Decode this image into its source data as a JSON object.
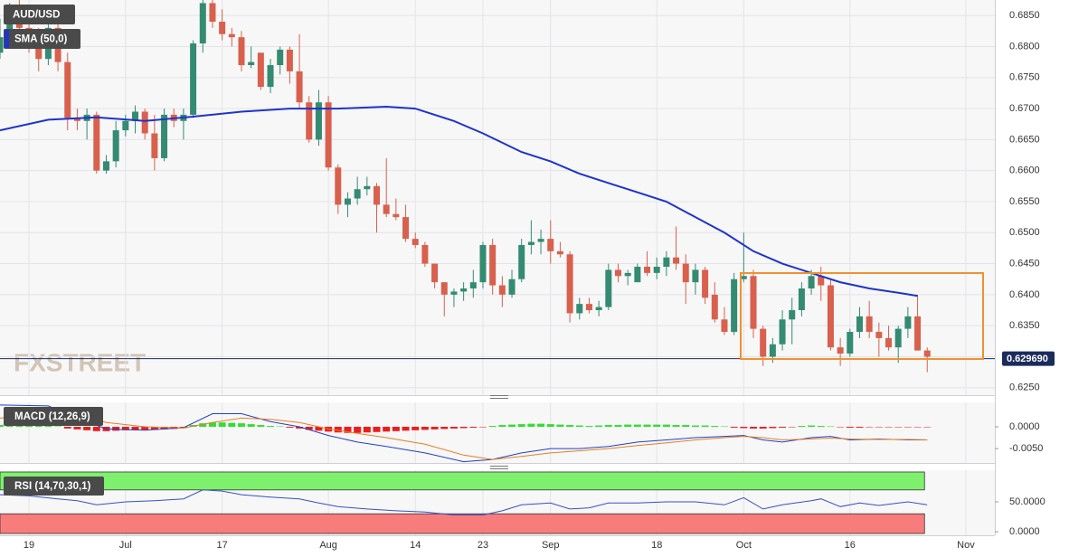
{
  "chart_data": [
    {
      "type": "candlestick",
      "title": "AUD/USD",
      "watermark": "FXSTREET",
      "up_color": "#348b72",
      "down_color": "#d8604d",
      "open": [
        0.679,
        0.6815,
        0.685,
        0.683,
        0.68,
        0.678,
        0.683,
        0.6775,
        0.6685,
        0.668,
        0.669,
        0.66,
        0.6615,
        0.6665,
        0.668,
        0.6695,
        0.666,
        0.662,
        0.669,
        0.668,
        0.669,
        0.6805,
        0.687,
        0.684,
        0.682,
        0.6815,
        0.677,
        0.679,
        0.6735,
        0.677,
        0.6795,
        0.676,
        0.671,
        0.665,
        0.671,
        0.6605,
        0.6545,
        0.6555,
        0.657,
        0.6575,
        0.6545,
        0.653,
        0.6525,
        0.649,
        0.648,
        0.645,
        0.642,
        0.64,
        0.6405,
        0.641,
        0.642,
        0.648,
        0.6415,
        0.64,
        0.6425,
        0.648,
        0.6485,
        0.649,
        0.647,
        0.6465,
        0.637,
        0.6385,
        0.6375,
        0.638,
        0.644,
        0.643,
        0.642,
        0.6445,
        0.6435,
        0.6445,
        0.646,
        0.645,
        0.642,
        0.644,
        0.64,
        0.636,
        0.634,
        0.6425,
        0.643,
        0.6345,
        0.63,
        0.632,
        0.636,
        0.6375,
        0.641,
        0.643,
        0.6415,
        0.6315,
        0.6305,
        0.634,
        0.6365,
        0.634,
        0.633,
        0.6315,
        0.6345,
        0.6365,
        0.631
      ],
      "high": [
        0.6845,
        0.687,
        0.6875,
        0.685,
        0.683,
        0.6845,
        0.684,
        0.679,
        0.67,
        0.67,
        0.6695,
        0.6625,
        0.668,
        0.669,
        0.6705,
        0.67,
        0.669,
        0.67,
        0.67,
        0.67,
        0.681,
        0.688,
        0.688,
        0.686,
        0.683,
        0.6825,
        0.68,
        0.679,
        0.678,
        0.68,
        0.68,
        0.682,
        0.672,
        0.673,
        0.672,
        0.661,
        0.6565,
        0.659,
        0.659,
        0.658,
        0.662,
        0.6555,
        0.6545,
        0.65,
        0.6485,
        0.645,
        0.642,
        0.641,
        0.642,
        0.644,
        0.6485,
        0.649,
        0.643,
        0.644,
        0.649,
        0.652,
        0.6505,
        0.652,
        0.6485,
        0.647,
        0.6395,
        0.6395,
        0.639,
        0.645,
        0.645,
        0.644,
        0.645,
        0.647,
        0.646,
        0.647,
        0.651,
        0.6465,
        0.645,
        0.6445,
        0.642,
        0.638,
        0.6435,
        0.65,
        0.644,
        0.635,
        0.633,
        0.6375,
        0.6395,
        0.642,
        0.644,
        0.6445,
        0.6425,
        0.633,
        0.6345,
        0.638,
        0.639,
        0.6355,
        0.635,
        0.635,
        0.638,
        0.64,
        0.6315
      ],
      "low": [
        0.678,
        0.68,
        0.682,
        0.679,
        0.676,
        0.677,
        0.676,
        0.6665,
        0.6665,
        0.665,
        0.6595,
        0.6595,
        0.6605,
        0.6655,
        0.666,
        0.665,
        0.66,
        0.6615,
        0.667,
        0.665,
        0.6685,
        0.679,
        0.683,
        0.681,
        0.68,
        0.676,
        0.6765,
        0.673,
        0.6725,
        0.6755,
        0.674,
        0.67,
        0.6645,
        0.664,
        0.66,
        0.653,
        0.6525,
        0.6545,
        0.656,
        0.65,
        0.6525,
        0.652,
        0.6485,
        0.6475,
        0.6445,
        0.641,
        0.6365,
        0.638,
        0.639,
        0.6395,
        0.641,
        0.64,
        0.638,
        0.6395,
        0.642,
        0.6465,
        0.6465,
        0.645,
        0.646,
        0.6355,
        0.636,
        0.637,
        0.6365,
        0.6375,
        0.642,
        0.6415,
        0.642,
        0.643,
        0.6425,
        0.643,
        0.644,
        0.6385,
        0.64,
        0.6385,
        0.6355,
        0.6335,
        0.6335,
        0.642,
        0.633,
        0.6285,
        0.629,
        0.631,
        0.632,
        0.6365,
        0.64,
        0.639,
        0.631,
        0.6285,
        0.63,
        0.633,
        0.633,
        0.63,
        0.631,
        0.629,
        0.633,
        0.631,
        0.6275
      ],
      "close": [
        0.6815,
        0.685,
        0.683,
        0.68,
        0.678,
        0.683,
        0.6775,
        0.6685,
        0.668,
        0.669,
        0.66,
        0.6615,
        0.6665,
        0.668,
        0.6695,
        0.666,
        0.662,
        0.669,
        0.668,
        0.669,
        0.6805,
        0.687,
        0.684,
        0.682,
        0.6815,
        0.677,
        0.6775,
        0.6735,
        0.677,
        0.6795,
        0.676,
        0.671,
        0.665,
        0.671,
        0.6605,
        0.6545,
        0.6555,
        0.657,
        0.6575,
        0.6545,
        0.653,
        0.6525,
        0.649,
        0.648,
        0.645,
        0.642,
        0.64,
        0.6405,
        0.641,
        0.642,
        0.648,
        0.6415,
        0.64,
        0.6425,
        0.648,
        0.6485,
        0.649,
        0.647,
        0.6465,
        0.637,
        0.6385,
        0.6375,
        0.638,
        0.644,
        0.643,
        0.6435,
        0.6445,
        0.6435,
        0.6445,
        0.646,
        0.645,
        0.642,
        0.644,
        0.6395,
        0.636,
        0.634,
        0.6425,
        0.643,
        0.6345,
        0.63,
        0.632,
        0.636,
        0.6375,
        0.641,
        0.643,
        0.6415,
        0.6315,
        0.6305,
        0.634,
        0.6365,
        0.634,
        0.633,
        0.6315,
        0.6345,
        0.6365,
        0.631,
        0.63
      ],
      "xlim": [
        0,
        103
      ],
      "xticks": [
        {
          "value": 3,
          "label": "19"
        },
        {
          "value": 13,
          "label": "Jul"
        },
        {
          "value": 23,
          "label": "17"
        },
        {
          "value": 34,
          "label": "Aug"
        },
        {
          "value": 43,
          "label": "14"
        },
        {
          "value": 50,
          "label": "23"
        },
        {
          "value": 57,
          "label": "Sep"
        },
        {
          "value": 68,
          "label": "18"
        },
        {
          "value": 77,
          "label": "Oct"
        },
        {
          "value": 88,
          "label": "16"
        },
        {
          "value": 100,
          "label": "Nov"
        }
      ],
      "ylim": [
        0.6238,
        0.6875
      ],
      "yticks": [
        {
          "value": 0.625,
          "label": "0.6250"
        },
        {
          "value": 0.63,
          "label": "0.6300"
        },
        {
          "value": 0.635,
          "label": "0.6350"
        },
        {
          "value": 0.64,
          "label": "0.6400"
        },
        {
          "value": 0.645,
          "label": "0.6450"
        },
        {
          "value": 0.65,
          "label": "0.6500"
        },
        {
          "value": 0.655,
          "label": "0.6550"
        },
        {
          "value": 0.66,
          "label": "0.6600"
        },
        {
          "value": 0.665,
          "label": "0.6650"
        },
        {
          "value": 0.67,
          "label": "0.6700"
        },
        {
          "value": 0.675,
          "label": "0.6750"
        },
        {
          "value": 0.68,
          "label": "0.6800"
        },
        {
          "value": 0.685,
          "label": "0.6850"
        }
      ],
      "grid": true,
      "last_price": {
        "value": 0.62969,
        "label": "0.629690"
      },
      "overlay": {
        "name": "SMA (50,0)",
        "color": "#1f33c9",
        "x": [
          0,
          5,
          10,
          15,
          20,
          25,
          30,
          35,
          40,
          43,
          47,
          50,
          54,
          57,
          60,
          63,
          66,
          69,
          72,
          75,
          78,
          81,
          84,
          87,
          90,
          93,
          95
        ],
        "values": [
          0.6665,
          0.6682,
          0.6686,
          0.668,
          0.6687,
          0.6695,
          0.67,
          0.67,
          0.6703,
          0.67,
          0.668,
          0.666,
          0.663,
          0.6615,
          0.6595,
          0.658,
          0.6565,
          0.655,
          0.6525,
          0.65,
          0.647,
          0.645,
          0.6435,
          0.642,
          0.641,
          0.6403,
          0.6398
        ]
      }
    },
    {
      "type": "macd",
      "title": "MACD (12,26,9)",
      "ylim": [
        -0.0083,
        0.0056
      ],
      "yticks": [
        {
          "value": -0.005,
          "label": "-0.0050"
        },
        {
          "value": 0,
          "label": "0.0000"
        }
      ],
      "histogram": {
        "up_color": "#33dd33",
        "down_color": "#ee1c1c",
        "values": [
          0.0004,
          0.0005,
          0.0005,
          0.0004,
          0.0003,
          0.0002,
          0.0001,
          -0.0004,
          -0.0006,
          -0.0008,
          -0.001,
          -0.001,
          -0.0009,
          -0.0008,
          -0.0008,
          -0.0007,
          -0.0007,
          -0.0006,
          -0.0005,
          -0.0003,
          0.0004,
          0.0008,
          0.001,
          0.001,
          0.0009,
          0.0008,
          0.0006,
          0.0004,
          0.0002,
          0.0001,
          -0.0002,
          -0.0004,
          -0.0007,
          -0.0009,
          -0.0011,
          -0.0013,
          -0.0014,
          -0.0014,
          -0.0013,
          -0.0012,
          -0.0011,
          -0.001,
          -0.0009,
          -0.0008,
          -0.0007,
          -0.0006,
          -0.0005,
          -0.0004,
          -0.0003,
          -0.0002,
          -0.0001,
          0.0002,
          0.0004,
          0.0005,
          0.0006,
          0.0007,
          0.0007,
          0.0006,
          0.0005,
          0.0004,
          0.0003,
          0.0002,
          0.0003,
          0.0004,
          0.0004,
          0.0005,
          0.0005,
          0.0005,
          0.0005,
          0.0005,
          0.0004,
          0.0004,
          0.0003,
          0.0003,
          0.0002,
          0.0001,
          -0.0002,
          -0.0003,
          -0.0004,
          -0.0004,
          -0.0003,
          -0.0002,
          -0.0001,
          0.0002,
          0.0003,
          0.0002,
          0.0001,
          -0.0001,
          -0.0002,
          -0.0002,
          -0.0001,
          -0.0001,
          -0.0001,
          -0.0001,
          -0.0001,
          -0.0001,
          -0.0001
        ]
      },
      "lines": [
        {
          "color": "#2340c4",
          "x": [
            0,
            5,
            8,
            11,
            15,
            19,
            22,
            25,
            28,
            31,
            34,
            37,
            40,
            44,
            48,
            51,
            54,
            57,
            60,
            63,
            66,
            69,
            72,
            75,
            77,
            79,
            81,
            84,
            86,
            88,
            91,
            94,
            96
          ],
          "values": [
            0.005,
            0.0048,
            0.002,
            -0.0005,
            -0.0008,
            -0.0002,
            0.003,
            0.003,
            0.0012,
            0.0,
            -0.002,
            -0.0035,
            -0.0045,
            -0.006,
            -0.008,
            -0.0075,
            -0.006,
            -0.005,
            -0.005,
            -0.0045,
            -0.0035,
            -0.003,
            -0.0025,
            -0.0022,
            -0.002,
            -0.003,
            -0.0035,
            -0.0025,
            -0.0022,
            -0.003,
            -0.0028,
            -0.003,
            -0.003
          ]
        },
        {
          "color": "#e67e22",
          "x": [
            0,
            5,
            8,
            11,
            15,
            19,
            22,
            25,
            28,
            31,
            34,
            37,
            40,
            44,
            48,
            51,
            54,
            57,
            60,
            63,
            66,
            69,
            72,
            75,
            77,
            79,
            81,
            84,
            86,
            88,
            91,
            94,
            96
          ],
          "values": [
            0.002,
            0.003,
            0.003,
            0.001,
            0.0,
            -0.0003,
            0.001,
            0.002,
            0.0017,
            0.001,
            -0.0005,
            -0.0015,
            -0.0025,
            -0.004,
            -0.0065,
            -0.0075,
            -0.0068,
            -0.006,
            -0.0055,
            -0.005,
            -0.0043,
            -0.0037,
            -0.003,
            -0.0025,
            -0.0022,
            -0.0025,
            -0.003,
            -0.0028,
            -0.0026,
            -0.0028,
            -0.0029,
            -0.0029,
            -0.003
          ]
        }
      ]
    },
    {
      "type": "rsi",
      "title": "RSI (14,70,30,1)",
      "ylim": [
        -6,
        103
      ],
      "yticks": [
        {
          "value": 0,
          "label": "0.0000"
        },
        {
          "value": 50,
          "label": "50.0000"
        }
      ],
      "upper": 70,
      "lower": 30,
      "upper_color": "#7ef06e",
      "lower_color": "#f87c7c",
      "line": {
        "color": "#3451c8",
        "x": [
          0,
          3,
          6,
          8,
          10,
          13,
          16,
          19,
          21,
          23,
          25,
          28,
          31,
          33,
          35,
          38,
          41,
          44,
          47,
          50,
          52,
          54,
          57,
          59,
          61,
          63,
          66,
          69,
          72,
          75,
          77,
          79,
          81,
          84,
          85,
          87,
          89,
          91,
          94,
          96
        ],
        "values": [
          62,
          60,
          55,
          52,
          45,
          50,
          52,
          55,
          70,
          68,
          62,
          58,
          55,
          48,
          42,
          38,
          35,
          33,
          28,
          28,
          35,
          45,
          48,
          38,
          40,
          48,
          48,
          50,
          50,
          45,
          57,
          38,
          45,
          52,
          55,
          42,
          48,
          44,
          50,
          45
        ]
      }
    }
  ]
}
